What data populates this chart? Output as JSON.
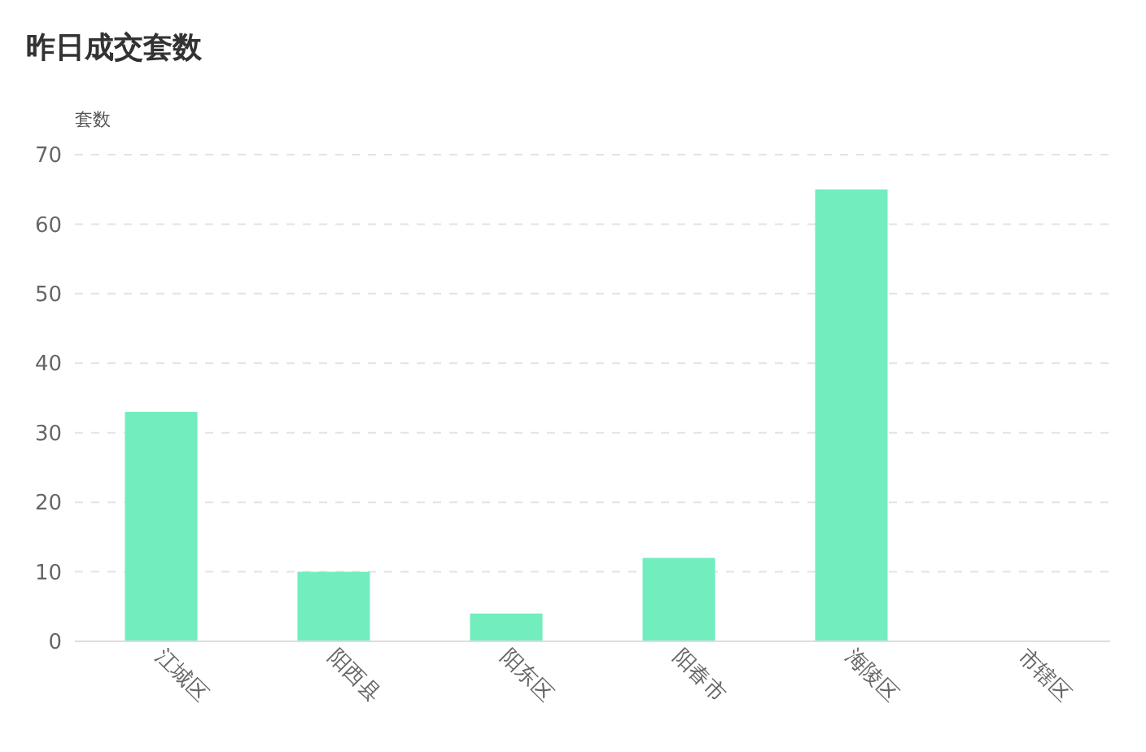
{
  "chart_data": {
    "type": "bar",
    "title": "昨日成交套数",
    "ylabel": "套数",
    "categories": [
      "江城区",
      "阳西县",
      "阳东区",
      "阳春市",
      "海陵区",
      "市辖区"
    ],
    "values": [
      33,
      10,
      4,
      12,
      65,
      0
    ],
    "color": "#72edbd",
    "ylim": [
      0,
      70
    ],
    "yticks": [
      0,
      10,
      20,
      30,
      40,
      50,
      60,
      70
    ],
    "grid": "y"
  }
}
